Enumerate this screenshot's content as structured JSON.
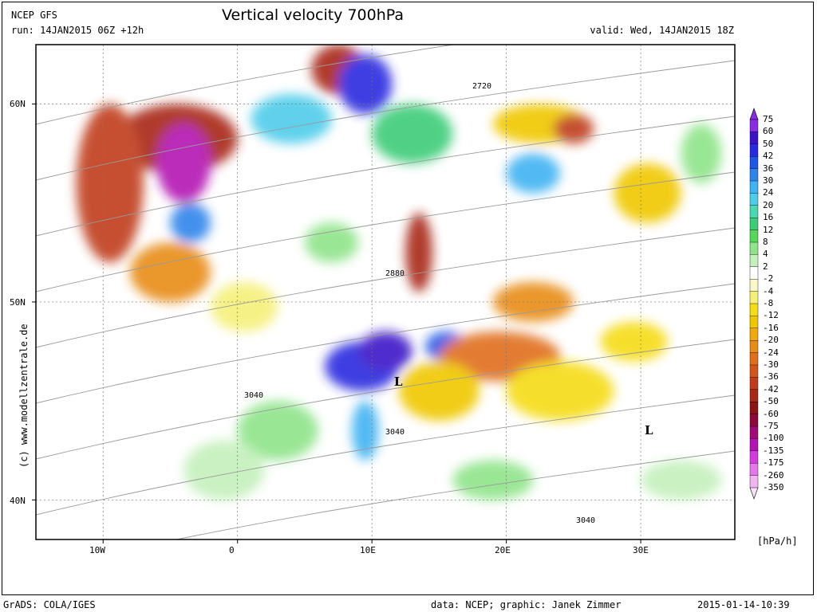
{
  "header": {
    "model": "NCEP GFS",
    "run": "run: 14JAN2015 06Z +12h",
    "title": "Vertical velocity 700hPa",
    "valid": "valid: Wed, 14JAN2015 18Z"
  },
  "footer": {
    "software": "GrADS: COLA/IGES",
    "credit": "data: NCEP; graphic: Janek Zimmer",
    "timestamp": "2015-01-14-10:39"
  },
  "side_label": "(c) www.modellzentrale.de",
  "axes": {
    "lon_labels": [
      "10W",
      "0",
      "10E",
      "20E",
      "30E"
    ],
    "lon_values": [
      -10,
      0,
      10,
      20,
      30
    ],
    "lat_labels": [
      "60N",
      "50N",
      "40N"
    ],
    "lat_values": [
      60,
      50,
      40
    ],
    "lon_range": [
      -15,
      37
    ],
    "lat_range": [
      38,
      63
    ]
  },
  "legend": {
    "unit": "[hPa/h]",
    "levels": [
      "75",
      "60",
      "50",
      "42",
      "36",
      "30",
      "24",
      "20",
      "16",
      "12",
      "8",
      "4",
      "2",
      "-2",
      "-4",
      "-8",
      "-12",
      "-16",
      "-20",
      "-24",
      "-30",
      "-36",
      "-42",
      "-50",
      "-60",
      "-75",
      "-100",
      "-135",
      "-175",
      "-260",
      "-350"
    ],
    "colors": [
      "#8a2be2",
      "#3c14c8",
      "#2a2ae0",
      "#1f56e6",
      "#2f84ea",
      "#3fb2f2",
      "#50ccea",
      "#4ad8b0",
      "#3ccc78",
      "#58d85a",
      "#8fe48a",
      "#c4f0bc",
      "#ffffff",
      "#fafac8",
      "#f5f07a",
      "#f5dc14",
      "#f0c800",
      "#f0a810",
      "#e88c18",
      "#e06e1a",
      "#d2561c",
      "#c03c1c",
      "#a82818",
      "#8c1414",
      "#8c0a3c",
      "#a00a78",
      "#b414b4",
      "#d23cdc",
      "#e478e8",
      "#f0b4f0"
    ]
  },
  "contours": {
    "labels": [
      "2720",
      "2880",
      "3040",
      "3040",
      "3040"
    ],
    "centers": [
      "L",
      "L"
    ]
  },
  "regions": [
    {
      "lon": -9,
      "lat": 56.5,
      "w": 9,
      "h": 3.5,
      "c": "#a82818"
    },
    {
      "lon": -12,
      "lat": 52,
      "w": 5,
      "h": 8,
      "c": "#c03c1c"
    },
    {
      "lon": -6,
      "lat": 55,
      "w": 4,
      "h": 4,
      "c": "#b414b4"
    },
    {
      "lon": -5,
      "lat": 53,
      "w": 3,
      "h": 2,
      "c": "#2f84ea"
    },
    {
      "lon": -8,
      "lat": 50,
      "w": 6,
      "h": 3,
      "c": "#e88c18"
    },
    {
      "lon": 5.5,
      "lat": 60.5,
      "w": 4,
      "h": 2.5,
      "c": "#a82818"
    },
    {
      "lon": 7.5,
      "lat": 59.5,
      "w": 4,
      "h": 3,
      "c": "#2a2ae0"
    },
    {
      "lon": 1,
      "lat": 58,
      "w": 6,
      "h": 2.5,
      "c": "#50ccea"
    },
    {
      "lon": 10,
      "lat": 57,
      "w": 6,
      "h": 3,
      "c": "#3ccc78"
    },
    {
      "lon": 12.5,
      "lat": 50.5,
      "w": 2,
      "h": 4,
      "c": "#a82818"
    },
    {
      "lon": 19,
      "lat": 58,
      "w": 7,
      "h": 2,
      "c": "#f0c800"
    },
    {
      "lon": 23.5,
      "lat": 58,
      "w": 3,
      "h": 1.5,
      "c": "#c03c1c"
    },
    {
      "lon": 20,
      "lat": 55.5,
      "w": 4,
      "h": 2,
      "c": "#3fb2f2"
    },
    {
      "lon": 6.5,
      "lat": 45.5,
      "w": 5.5,
      "h": 2.5,
      "c": "#2a2ae0"
    },
    {
      "lon": 9,
      "lat": 46.5,
      "w": 4,
      "h": 2,
      "c": "#3c14c8"
    },
    {
      "lon": 14,
      "lat": 47,
      "w": 3,
      "h": 1.5,
      "c": "#1f56e6"
    },
    {
      "lon": 15,
      "lat": 46,
      "w": 9,
      "h": 2.5,
      "c": "#e06e1a"
    },
    {
      "lon": 19,
      "lat": 49,
      "w": 6,
      "h": 2,
      "c": "#e88c18"
    },
    {
      "lon": 12,
      "lat": 44,
      "w": 6,
      "h": 3,
      "c": "#f0c800"
    },
    {
      "lon": 20,
      "lat": 44,
      "w": 8,
      "h": 3,
      "c": "#f5dc14"
    },
    {
      "lon": -2,
      "lat": 48.5,
      "w": 5,
      "h": 2.5,
      "c": "#f5f07a"
    },
    {
      "lon": 0,
      "lat": 42,
      "w": 6,
      "h": 3,
      "c": "#8fe48a"
    },
    {
      "lon": 8.5,
      "lat": 42,
      "w": 2,
      "h": 3,
      "c": "#3fb2f2"
    },
    {
      "lon": 5,
      "lat": 52,
      "w": 4,
      "h": 2,
      "c": "#8fe48a"
    },
    {
      "lon": 28,
      "lat": 54,
      "w": 5,
      "h": 3,
      "c": "#f0c800"
    },
    {
      "lon": 33,
      "lat": 56,
      "w": 3,
      "h": 3,
      "c": "#8fe48a"
    },
    {
      "lon": 27,
      "lat": 47,
      "w": 5,
      "h": 2,
      "c": "#f5dc14"
    },
    {
      "lon": -4,
      "lat": 40,
      "w": 6,
      "h": 3,
      "c": "#c4f0bc"
    },
    {
      "lon": 16,
      "lat": 40,
      "w": 6,
      "h": 2,
      "c": "#8fe48a"
    },
    {
      "lon": 30,
      "lat": 40,
      "w": 6,
      "h": 2,
      "c": "#c4f0bc"
    }
  ]
}
